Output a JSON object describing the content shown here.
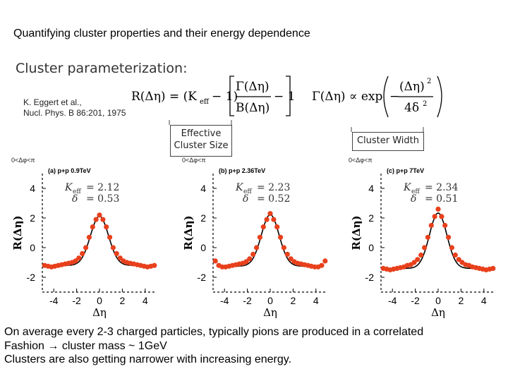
{
  "title": "Quantifying cluster properties and their energy dependence",
  "parameterization": {
    "heading": "Cluster parameterization:",
    "reference_line1": "K. Eggert et al.,",
    "reference_line2": "Nucl. Phys. B 86:201, 1975",
    "formula_R": "R(Δη) = (K",
    "formula_eff": "eff",
    "formula_minus1": "− 1)",
    "formula_gamma_num": "Γ(Δη)",
    "formula_B_den": "B(Δη)",
    "formula_minus1b": "− 1",
    "formula_gamma_lhs": "Γ(Δη) ∝ exp",
    "formula_exp_num": "(Δη)",
    "formula_exp_pow": "2",
    "formula_exp_den": "4δ",
    "formula_exp_den_pow": "2",
    "formula_neg": "−",
    "effective_label_line1": "Effective",
    "effective_label_line2": "Cluster Size",
    "width_label": "Cluster Width"
  },
  "caption": {
    "line1": "On average every 2-3 charged particles, typically pions are produced in a correlated",
    "line2": "Fashion → cluster mass ~ 1GeV",
    "line3": "Clusters are also getting narrower with increasing energy."
  },
  "chart_data": [
    {
      "type": "scatter",
      "range_label": "0<Δφ<π",
      "panel_label": "(a) p+p 0.9TeV",
      "keff_label": "K",
      "keff_sub": "eff",
      "keff_value": "= 2.12",
      "delta_label": "δ",
      "delta_value": "= 0.53",
      "xlabel": "Δη",
      "ylabel": "R(Δη)",
      "xlim": [
        -5,
        5
      ],
      "ylim": [
        -3,
        5
      ],
      "xticks": [
        "-4",
        "-2",
        "0",
        "2",
        "4"
      ],
      "yticks": [
        "4",
        "2",
        "0",
        "-2"
      ],
      "series": [
        {
          "points": [
            [
              -4.8,
              -1.2
            ],
            [
              -4.5,
              -1.25
            ],
            [
              -4.2,
              -1.3
            ],
            [
              -3.9,
              -1.25
            ],
            [
              -3.6,
              -1.2
            ],
            [
              -3.3,
              -1.15
            ],
            [
              -3.0,
              -1.1
            ],
            [
              -2.7,
              -1.05
            ],
            [
              -2.4,
              -1.0
            ],
            [
              -2.1,
              -0.9
            ],
            [
              -1.8,
              -0.7
            ],
            [
              -1.5,
              -0.4
            ],
            [
              -1.2,
              0.0
            ],
            [
              -0.9,
              0.7
            ],
            [
              -0.6,
              1.4
            ],
            [
              -0.3,
              1.9
            ],
            [
              0.0,
              2.2
            ],
            [
              0.3,
              1.9
            ],
            [
              0.6,
              1.4
            ],
            [
              0.9,
              0.7
            ],
            [
              1.2,
              0.0
            ],
            [
              1.5,
              -0.4
            ],
            [
              1.8,
              -0.7
            ],
            [
              2.1,
              -0.9
            ],
            [
              2.4,
              -1.0
            ],
            [
              2.7,
              -1.05
            ],
            [
              3.0,
              -1.1
            ],
            [
              3.3,
              -1.15
            ],
            [
              3.6,
              -1.2
            ],
            [
              3.9,
              -1.25
            ],
            [
              4.2,
              -1.3
            ],
            [
              4.5,
              -1.25
            ],
            [
              4.8,
              -1.2
            ]
          ]
        }
      ],
      "fit": {
        "keff": 2.12,
        "delta": 0.53,
        "baseline": -1.2
      }
    },
    {
      "type": "scatter",
      "range_label": "0<Δφ<π",
      "panel_label": "(b) p+p 2.36TeV",
      "keff_label": "K",
      "keff_sub": "eff",
      "keff_value": "= 2.23",
      "delta_label": "δ",
      "delta_value": "= 0.52",
      "xlabel": "Δη",
      "ylabel": "R(Δη)",
      "xlim": [
        -5,
        5
      ],
      "ylim": [
        -3,
        5
      ],
      "xticks": [
        "-4",
        "-2",
        "0",
        "2",
        "4"
      ],
      "yticks": [
        "4",
        "2",
        "0",
        "-2"
      ],
      "series": [
        {
          "points": [
            [
              -4.8,
              -0.9
            ],
            [
              -4.5,
              -1.2
            ],
            [
              -4.2,
              -1.3
            ],
            [
              -3.9,
              -1.3
            ],
            [
              -3.6,
              -1.25
            ],
            [
              -3.3,
              -1.2
            ],
            [
              -3.0,
              -1.15
            ],
            [
              -2.7,
              -1.1
            ],
            [
              -2.4,
              -1.05
            ],
            [
              -2.1,
              -0.95
            ],
            [
              -1.8,
              -0.75
            ],
            [
              -1.5,
              -0.45
            ],
            [
              -1.2,
              0.0
            ],
            [
              -0.9,
              0.7
            ],
            [
              -0.6,
              1.4
            ],
            [
              -0.3,
              1.9
            ],
            [
              0.0,
              2.3
            ],
            [
              0.3,
              1.9
            ],
            [
              0.6,
              1.4
            ],
            [
              0.9,
              0.7
            ],
            [
              1.2,
              0.0
            ],
            [
              1.5,
              -0.45
            ],
            [
              1.8,
              -0.75
            ],
            [
              2.1,
              -0.95
            ],
            [
              2.4,
              -1.05
            ],
            [
              2.7,
              -1.1
            ],
            [
              3.0,
              -1.15
            ],
            [
              3.3,
              -1.2
            ],
            [
              3.6,
              -1.25
            ],
            [
              3.9,
              -1.3
            ],
            [
              4.2,
              -1.3
            ],
            [
              4.5,
              -1.2
            ],
            [
              4.8,
              -0.9
            ]
          ]
        }
      ],
      "fit": {
        "keff": 2.23,
        "delta": 0.52,
        "baseline": -1.25
      }
    },
    {
      "type": "scatter",
      "range_label": "0<Δφ<π",
      "panel_label": "(c) p+p 7TeV",
      "keff_label": "K",
      "keff_sub": "eff",
      "keff_value": "= 2.34",
      "delta_label": "δ",
      "delta_value": "= 0.51",
      "xlabel": "Δη",
      "ylabel": "R(Δη)",
      "xlim": [
        -5,
        5
      ],
      "ylim": [
        -3,
        5
      ],
      "xticks": [
        "-4",
        "-2",
        "0",
        "2",
        "4"
      ],
      "yticks": [
        "4",
        "2",
        "0",
        "-2"
      ],
      "series": [
        {
          "points": [
            [
              -4.8,
              -1.4
            ],
            [
              -4.5,
              -1.45
            ],
            [
              -4.2,
              -1.5
            ],
            [
              -3.9,
              -1.45
            ],
            [
              -3.6,
              -1.4
            ],
            [
              -3.3,
              -1.35
            ],
            [
              -3.0,
              -1.3
            ],
            [
              -2.7,
              -1.2
            ],
            [
              -2.4,
              -1.15
            ],
            [
              -2.1,
              -1.0
            ],
            [
              -1.8,
              -0.8
            ],
            [
              -1.5,
              -0.5
            ],
            [
              -1.2,
              0.0
            ],
            [
              -0.9,
              0.7
            ],
            [
              -0.6,
              1.5
            ],
            [
              -0.3,
              2.1
            ],
            [
              0.0,
              2.6
            ],
            [
              0.3,
              2.1
            ],
            [
              0.6,
              1.5
            ],
            [
              0.9,
              0.7
            ],
            [
              1.2,
              0.0
            ],
            [
              1.5,
              -0.5
            ],
            [
              1.8,
              -0.8
            ],
            [
              2.1,
              -1.0
            ],
            [
              2.4,
              -1.15
            ],
            [
              2.7,
              -1.2
            ],
            [
              3.0,
              -1.3
            ],
            [
              3.3,
              -1.35
            ],
            [
              3.6,
              -1.4
            ],
            [
              3.9,
              -1.45
            ],
            [
              4.2,
              -1.5
            ],
            [
              4.5,
              -1.45
            ],
            [
              4.8,
              -1.4
            ]
          ]
        }
      ],
      "fit": {
        "keff": 2.34,
        "delta": 0.51,
        "baseline": -1.4
      }
    }
  ]
}
